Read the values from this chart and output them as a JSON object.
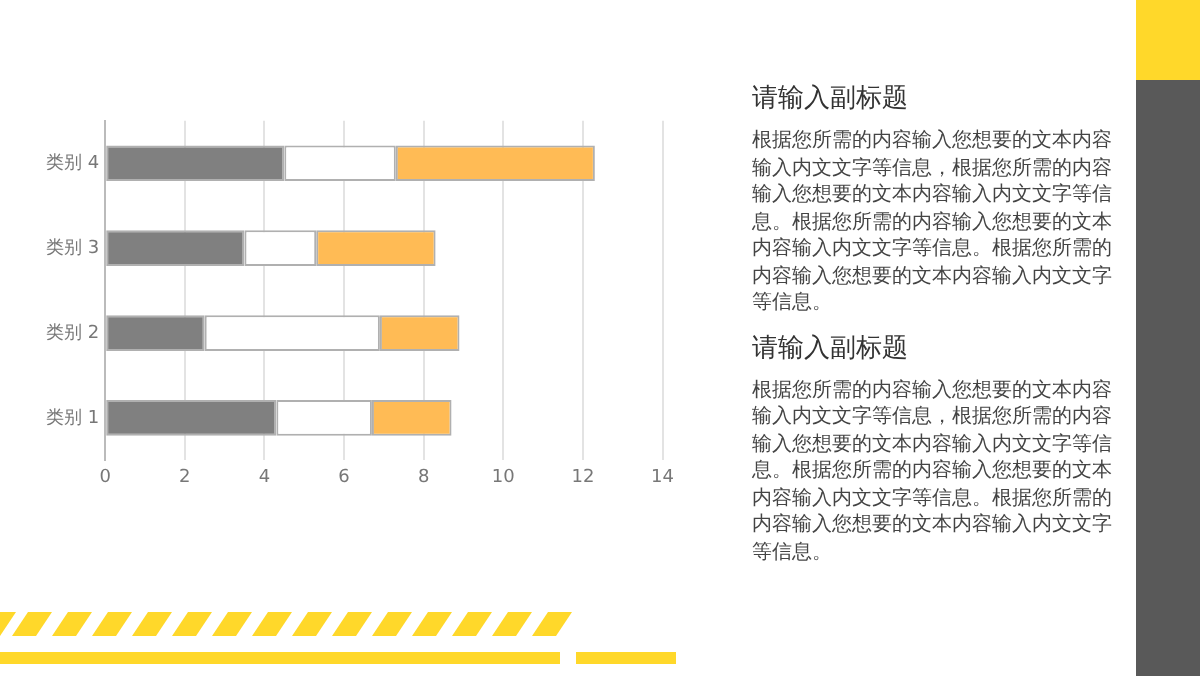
{
  "chart_data": {
    "type": "bar",
    "orientation": "horizontal",
    "stacked": true,
    "categories": [
      "类别 4",
      "类别 3",
      "类别 2",
      "类别 1"
    ],
    "series": [
      {
        "color": "#808080",
        "values": [
          4.5,
          3.5,
          2.5,
          4.3
        ]
      },
      {
        "color": "#ffffff",
        "values": [
          2.8,
          1.8,
          4.4,
          2.4
        ]
      },
      {
        "color": "#ffbb55",
        "values": [
          5,
          3,
          2,
          2
        ]
      }
    ],
    "xlim": [
      0,
      14
    ],
    "xticks": [
      0,
      2,
      4,
      6,
      8,
      10,
      12,
      14
    ],
    "grid": "x",
    "legend": false,
    "annotations": [
      "请输入副标题",
      "根据您所需的内容输入您想要的文本内容输入内文文字等信息，根据您所需的内容输入您想要的文本内容输入内文文字等信息。根据您所需的内容输入您想要的文本内容输入内文文字等信息。根据您所需的内容输入您想要的文本内容输入内文文字等信息。",
      "请输入副标题",
      "根据您所需的内容输入您想要的文本内容输入内文文字等信息，根据您所需的内容输入您想要的文本内容输入内文文字等信息。根据您所需的内容输入您想要的文本内容输入内文文字等信息。根据您所需的内容输入您想要的文本内容输入内文文字等信息。"
    ]
  }
}
